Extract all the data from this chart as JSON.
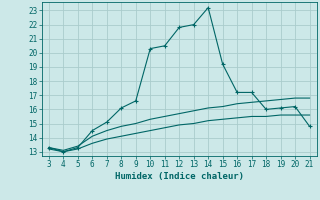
{
  "background_color": "#cce8e8",
  "grid_color": "#aacccc",
  "line_color": "#006666",
  "xlabel": "Humidex (Indice chaleur)",
  "x_ticks": [
    3,
    4,
    5,
    6,
    7,
    8,
    9,
    10,
    11,
    12,
    13,
    14,
    15,
    16,
    17,
    18,
    19,
    20,
    21
  ],
  "y_ticks": [
    13,
    14,
    15,
    16,
    17,
    18,
    19,
    20,
    21,
    22,
    23
  ],
  "xlim": [
    2.5,
    21.5
  ],
  "ylim": [
    12.7,
    23.6
  ],
  "line1_x": [
    3,
    4,
    5,
    6,
    7,
    8,
    9,
    10,
    11,
    12,
    13,
    14,
    15,
    16,
    17,
    18,
    19,
    20,
    21
  ],
  "line1_y": [
    13.3,
    13.0,
    13.3,
    14.5,
    15.1,
    16.1,
    16.6,
    20.3,
    20.5,
    21.8,
    22.0,
    23.2,
    19.2,
    17.2,
    17.2,
    16.0,
    16.1,
    16.2,
    14.8
  ],
  "line2_x": [
    3,
    4,
    5,
    6,
    7,
    8,
    9,
    10,
    11,
    12,
    13,
    14,
    15,
    16,
    17,
    18,
    19,
    20,
    21
  ],
  "line2_y": [
    13.3,
    13.1,
    13.4,
    14.1,
    14.5,
    14.8,
    15.0,
    15.3,
    15.5,
    15.7,
    15.9,
    16.1,
    16.2,
    16.4,
    16.5,
    16.6,
    16.7,
    16.8,
    16.8
  ],
  "line3_x": [
    3,
    4,
    5,
    6,
    7,
    8,
    9,
    10,
    11,
    12,
    13,
    14,
    15,
    16,
    17,
    18,
    19,
    20,
    21
  ],
  "line3_y": [
    13.2,
    13.0,
    13.2,
    13.6,
    13.9,
    14.1,
    14.3,
    14.5,
    14.7,
    14.9,
    15.0,
    15.2,
    15.3,
    15.4,
    15.5,
    15.5,
    15.6,
    15.6,
    15.6
  ],
  "tick_fontsize": 5.5,
  "xlabel_fontsize": 6.5,
  "linewidth": 0.8,
  "marker_size": 2.8
}
